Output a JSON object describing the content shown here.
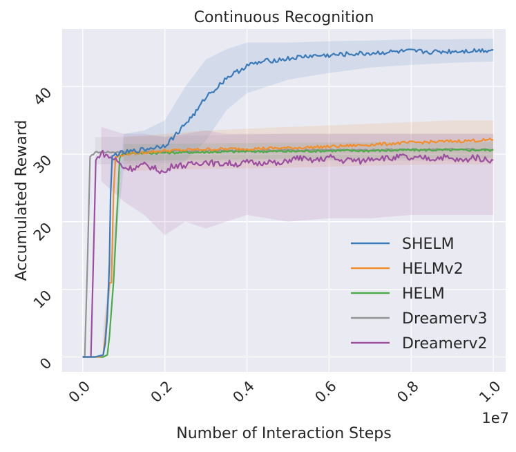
{
  "chart_data": {
    "type": "line",
    "title": "Continuous Recognition",
    "xlabel": "Number of Interaction Steps",
    "ylabel": "Accumulated Reward",
    "x_offset_label": "1e7",
    "xlim": [
      -0.05,
      1.03
    ],
    "ylim": [
      -2.2,
      48.5
    ],
    "x_ticks": [
      "0.0",
      "0.2",
      "0.4",
      "0.6",
      "0.8",
      "1.0"
    ],
    "x_tick_values": [
      0.0,
      0.2,
      0.4,
      0.6,
      0.8,
      1.0
    ],
    "y_ticks": [
      "0",
      "10",
      "20",
      "30",
      "40"
    ],
    "y_tick_values": [
      0,
      10,
      20,
      30,
      40
    ],
    "grid": true,
    "legend_position": "lower-right",
    "background": "#eaeaf2",
    "series": [
      {
        "name": "SHELM",
        "color": "#3a7ab8",
        "points": [
          [
            0.0,
            0
          ],
          [
            0.03,
            0
          ],
          [
            0.05,
            0.3
          ],
          [
            0.055,
            2
          ],
          [
            0.06,
            6
          ],
          [
            0.065,
            14
          ],
          [
            0.068,
            24
          ],
          [
            0.072,
            29.5
          ],
          [
            0.08,
            30
          ],
          [
            0.1,
            30.2
          ],
          [
            0.15,
            30.7
          ],
          [
            0.2,
            31.3
          ],
          [
            0.22,
            32.4
          ],
          [
            0.25,
            34.5
          ],
          [
            0.28,
            36.5
          ],
          [
            0.3,
            38.5
          ],
          [
            0.33,
            40.0
          ],
          [
            0.35,
            41.3
          ],
          [
            0.38,
            42.3
          ],
          [
            0.4,
            43.1
          ],
          [
            0.45,
            43.8
          ],
          [
            0.5,
            44.1
          ],
          [
            0.55,
            44.5
          ],
          [
            0.6,
            44.6
          ],
          [
            0.65,
            44.8
          ],
          [
            0.7,
            44.9
          ],
          [
            0.75,
            45.1
          ],
          [
            0.8,
            45.2
          ],
          [
            0.85,
            45.1
          ],
          [
            0.9,
            45.2
          ],
          [
            0.95,
            45.3
          ],
          [
            1.0,
            45.4
          ]
        ],
        "band": [
          [
            0.05,
            0,
            4
          ],
          [
            0.1,
            28,
            33
          ],
          [
            0.15,
            28.5,
            33.5
          ],
          [
            0.2,
            27.5,
            35
          ],
          [
            0.25,
            29,
            40
          ],
          [
            0.3,
            32,
            44
          ],
          [
            0.35,
            36.5,
            45.5
          ],
          [
            0.4,
            39,
            46.5
          ],
          [
            0.5,
            41,
            46.5
          ],
          [
            0.6,
            42,
            46.7
          ],
          [
            0.7,
            42.8,
            46.8
          ],
          [
            0.8,
            43.2,
            47
          ],
          [
            0.9,
            43.5,
            47
          ],
          [
            1.0,
            43.7,
            47.1
          ]
        ]
      },
      {
        "name": "HELMv2",
        "color": "#f28e2b",
        "points": [
          [
            0.0,
            0
          ],
          [
            0.04,
            0
          ],
          [
            0.05,
            0.3
          ],
          [
            0.055,
            3
          ],
          [
            0.06,
            7
          ],
          [
            0.065,
            11
          ],
          [
            0.07,
            11
          ],
          [
            0.075,
            24
          ],
          [
            0.08,
            29.5
          ],
          [
            0.1,
            30.0
          ],
          [
            0.2,
            30.5
          ],
          [
            0.3,
            30.7
          ],
          [
            0.4,
            30.8
          ],
          [
            0.5,
            30.9
          ],
          [
            0.6,
            31.1
          ],
          [
            0.7,
            31.4
          ],
          [
            0.8,
            31.7
          ],
          [
            0.9,
            31.9
          ],
          [
            1.0,
            32.1
          ]
        ],
        "band": [
          [
            0.1,
            27.5,
            32.5
          ],
          [
            0.3,
            27.8,
            33.5
          ],
          [
            0.5,
            28,
            34
          ],
          [
            0.7,
            28.3,
            34.5
          ],
          [
            0.9,
            28.5,
            35
          ],
          [
            1.0,
            28.5,
            35
          ]
        ]
      },
      {
        "name": "HELM",
        "color": "#4aab47",
        "points": [
          [
            0.0,
            0
          ],
          [
            0.05,
            0
          ],
          [
            0.06,
            0.3
          ],
          [
            0.065,
            3
          ],
          [
            0.07,
            7
          ],
          [
            0.075,
            11
          ],
          [
            0.08,
            17
          ],
          [
            0.085,
            23
          ],
          [
            0.09,
            29.5
          ],
          [
            0.1,
            30.1
          ],
          [
            0.2,
            30.2
          ],
          [
            0.3,
            30.3
          ],
          [
            0.4,
            30.4
          ],
          [
            0.5,
            30.4
          ],
          [
            0.6,
            30.5
          ],
          [
            0.7,
            30.5
          ],
          [
            0.8,
            30.6
          ],
          [
            0.9,
            30.6
          ],
          [
            1.0,
            30.6
          ]
        ],
        "band": [
          [
            0.1,
            29,
            31.5
          ],
          [
            0.5,
            29.3,
            31.7
          ],
          [
            1.0,
            29.4,
            31.8
          ]
        ]
      },
      {
        "name": "Dreamerv3",
        "color": "#939393",
        "points": [
          [
            0.0,
            0
          ],
          [
            0.005,
            0
          ],
          [
            0.012,
            15
          ],
          [
            0.018,
            29.5
          ],
          [
            0.03,
            30.3
          ],
          [
            0.1,
            30.3
          ],
          [
            0.2,
            30.4
          ],
          [
            0.3,
            30.5
          ],
          [
            0.4,
            30.5
          ],
          [
            0.5,
            30.6
          ],
          [
            0.6,
            30.6
          ],
          [
            0.7,
            30.6
          ],
          [
            0.8,
            30.7
          ],
          [
            0.9,
            30.7
          ],
          [
            1.0,
            30.7
          ]
        ],
        "band": [
          [
            0.03,
            28.5,
            32.5
          ],
          [
            0.5,
            29,
            33
          ],
          [
            1.0,
            29,
            33
          ]
        ]
      },
      {
        "name": "Dreamerv2",
        "color": "#9b4ea0",
        "points": [
          [
            0.0,
            0
          ],
          [
            0.02,
            0
          ],
          [
            0.025,
            12
          ],
          [
            0.032,
            29
          ],
          [
            0.045,
            30.3
          ],
          [
            0.06,
            29.7
          ],
          [
            0.08,
            29.2
          ],
          [
            0.1,
            28.0
          ],
          [
            0.12,
            27.9
          ],
          [
            0.15,
            28.4
          ],
          [
            0.18,
            27.8
          ],
          [
            0.2,
            27.2
          ],
          [
            0.22,
            28.4
          ],
          [
            0.25,
            28.3
          ],
          [
            0.28,
            28.7
          ],
          [
            0.3,
            28.9
          ],
          [
            0.33,
            28.5
          ],
          [
            0.35,
            28.7
          ],
          [
            0.38,
            28.5
          ],
          [
            0.4,
            28.8
          ],
          [
            0.43,
            28.6
          ],
          [
            0.45,
            29.0
          ],
          [
            0.48,
            28.4
          ],
          [
            0.5,
            29.1
          ],
          [
            0.53,
            29.5
          ],
          [
            0.55,
            29.0
          ],
          [
            0.58,
            29.2
          ],
          [
            0.6,
            29.6
          ],
          [
            0.63,
            29.0
          ],
          [
            0.65,
            29.2
          ],
          [
            0.68,
            28.9
          ],
          [
            0.7,
            29.4
          ],
          [
            0.73,
            29.5
          ],
          [
            0.75,
            29.3
          ],
          [
            0.78,
            29.7
          ],
          [
            0.8,
            29.2
          ],
          [
            0.83,
            29.5
          ],
          [
            0.85,
            29.3
          ],
          [
            0.88,
            29.6
          ],
          [
            0.9,
            29.2
          ],
          [
            0.93,
            29.0
          ],
          [
            0.95,
            29.6
          ],
          [
            0.98,
            29.2
          ],
          [
            1.0,
            29.1
          ]
        ],
        "band": [
          [
            0.045,
            26,
            34
          ],
          [
            0.1,
            23,
            33
          ],
          [
            0.15,
            21,
            33
          ],
          [
            0.2,
            18,
            32.5
          ],
          [
            0.25,
            20,
            33
          ],
          [
            0.3,
            19,
            33.5
          ],
          [
            0.35,
            20,
            33
          ],
          [
            0.4,
            21,
            33
          ],
          [
            0.5,
            20,
            33
          ],
          [
            0.6,
            20.5,
            33
          ],
          [
            0.7,
            20.5,
            33
          ],
          [
            0.8,
            21,
            33
          ],
          [
            0.9,
            21,
            33
          ],
          [
            1.0,
            21,
            33
          ]
        ]
      }
    ]
  }
}
